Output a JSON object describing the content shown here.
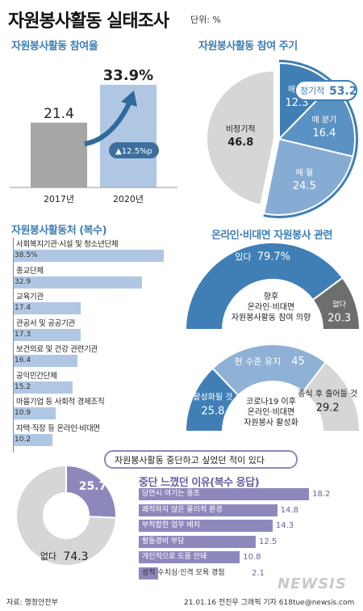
{
  "header": {
    "title": "자원봉사활동 실태조사",
    "unit": "단위: %"
  },
  "chart_data": [
    {
      "type": "bar",
      "title": "자원봉사활동 참여율",
      "categories": [
        "2017년",
        "2020년"
      ],
      "values": [
        21.4,
        33.9
      ],
      "annotation": "▲12.5%p",
      "ylim": [
        0,
        40
      ]
    },
    {
      "type": "pie",
      "title": "자원봉사활동 참여 주기",
      "slices": [
        {
          "label": "매 주",
          "value": 12.3
        },
        {
          "label": "매 분기",
          "value": 16.4
        },
        {
          "label": "매 월",
          "value": 24.5
        },
        {
          "label": "비정기적",
          "value": 46.8
        }
      ],
      "callout": {
        "label": "정기적",
        "value": 53.2
      }
    },
    {
      "type": "bar",
      "orientation": "horizontal",
      "title": "자원봉사활동처 (복수)",
      "categories": [
        "사회복지기관·시설 및 청소년단체",
        "종교단체",
        "교육기관",
        "관공서 및 공공기관",
        "보건의료 및 건강 관련기관",
        "공익민간단체",
        "마을기업 등 사회적 경제조직",
        "자택·직장 등 온라인·비대면"
      ],
      "values": [
        38.5,
        32.9,
        17.4,
        17.3,
        16.4,
        15.2,
        10.9,
        10.2
      ],
      "xlim": [
        0,
        40
      ]
    },
    {
      "type": "pie",
      "title": "온라인·비대면 자원봉사 관련",
      "center_label": [
        "향후",
        "온라인·비대면",
        "자원봉사활동 참여 의향"
      ],
      "slices": [
        {
          "label": "있다",
          "value": 79.7
        },
        {
          "label": "없다",
          "value": 20.3
        }
      ]
    },
    {
      "type": "pie",
      "center_label": [
        "코로나19 이후",
        "온라인·비대면",
        "자원봉사 활성화"
      ],
      "slices": [
        {
          "label": "활성화될 것",
          "value": 25.8
        },
        {
          "label": "현 수준 유지",
          "value": 45
        },
        {
          "label": "종식 후 줄어들 것",
          "value": 29.2
        }
      ]
    },
    {
      "type": "pie",
      "title": "자원봉사활동 중단하고 싶었던 적이 있다",
      "slices": [
        {
          "label": "",
          "value": 25.7
        },
        {
          "label": "없다",
          "value": 74.3
        }
      ]
    },
    {
      "type": "bar",
      "orientation": "horizontal",
      "title": "중단 느꼈던 이유(복수 응답)",
      "categories": [
        "당연시 여기는 풍조",
        "쾌적하지 않은 물리적 환경",
        "부적합한 업무 배치",
        "활동경비 부담",
        "개인적으로 도움 안돼",
        "성적 수치심·인격 모욕 경험"
      ],
      "values": [
        18.2,
        14.8,
        14.3,
        12.5,
        10.8,
        2.1
      ],
      "xlim": [
        0,
        20
      ]
    }
  ],
  "footer": {
    "source": "자료: 행정안전부",
    "credit": "21.01.16 전진우 그래픽 기자 618tue@newsis.com",
    "logo": "NEWSIS"
  },
  "colors": {
    "blue": "#3f7fb6",
    "light_blue": "#b0c7e4",
    "bar_gray": "#a6a6a6",
    "purple": "#8d88bc",
    "dark_gray": "#666666",
    "light_gray": "#d6d6d6"
  }
}
